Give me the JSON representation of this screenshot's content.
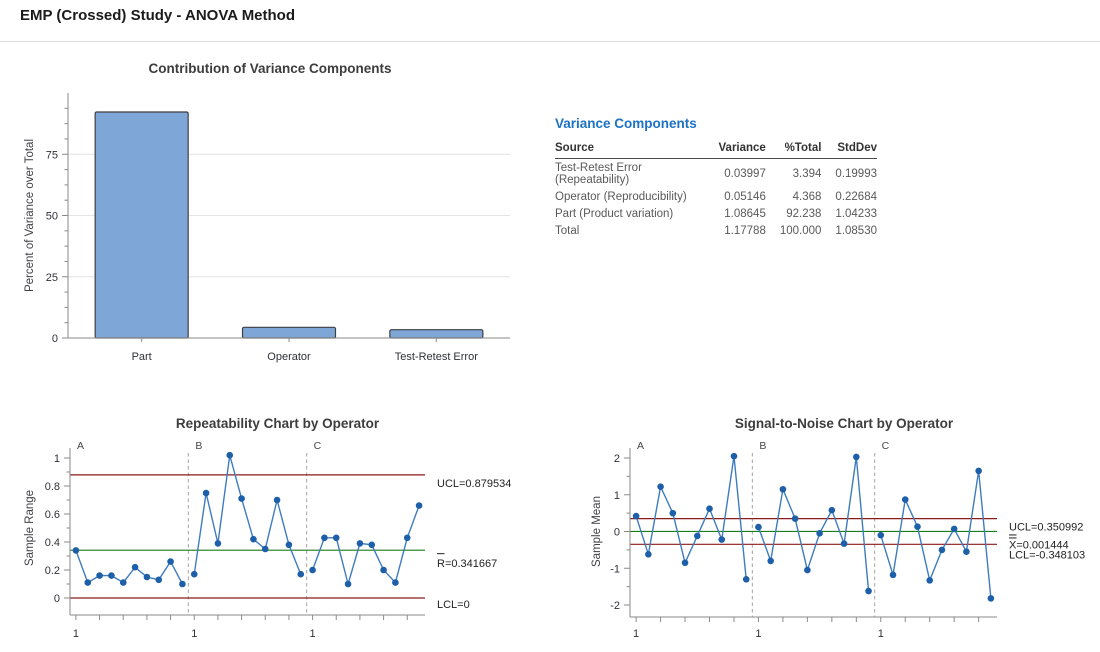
{
  "page": {
    "title": "EMP (Crossed) Study - ANOVA Method"
  },
  "colors": {
    "heading_blue": "#1c72c4",
    "bar_fill": "#7ea7d8",
    "bar_border": "#3f3f3f",
    "limit_red": "#8b1a1a",
    "center_green": "#1a7d1a",
    "marker_blue": "#1d5fa8",
    "line_blue": "#3e7cbe"
  },
  "variance_table": {
    "title": "Variance Components",
    "columns": [
      "Source",
      "Variance",
      "%Total",
      "StdDev"
    ],
    "rows": [
      {
        "source": "Test-Retest Error (Repeatability)",
        "variance": "0.03997",
        "pct_total": "3.394",
        "stddev": "0.19993"
      },
      {
        "source": "Operator (Reproducibility)",
        "variance": "0.05146",
        "pct_total": "4.368",
        "stddev": "0.22684"
      },
      {
        "source": "Part (Product variation)",
        "variance": "1.08645",
        "pct_total": "92.238",
        "stddev": "1.04233"
      },
      {
        "source": "Total",
        "variance": "1.17788",
        "pct_total": "100.000",
        "stddev": "1.08530"
      }
    ]
  },
  "chart_data": [
    {
      "type": "bar",
      "title": "Contribution of Variance Components",
      "xlabel": "",
      "ylabel": "Percent of Variance over Total",
      "categories": [
        "Part",
        "Operator",
        "Test-Retest Error"
      ],
      "values": [
        92.238,
        4.368,
        3.394
      ],
      "ylim": [
        0,
        100
      ],
      "ytick_values": [
        0,
        25,
        50,
        75
      ],
      "ytick_labels": [
        "0",
        "25",
        "50",
        "75"
      ],
      "grid": true
    },
    {
      "type": "line",
      "subtype": "control_chart",
      "title": "Repeatability Chart by Operator",
      "ylabel": "Sample Range",
      "x_group_tick_label": "1",
      "groups": [
        {
          "label": "A",
          "values": [
            0.34,
            0.11,
            0.16,
            0.16,
            0.11,
            0.22,
            0.15,
            0.13,
            0.26,
            0.1
          ]
        },
        {
          "label": "B",
          "values": [
            0.17,
            0.75,
            0.39,
            1.02,
            0.71,
            0.42,
            0.35,
            0.7,
            0.38,
            0.17
          ]
        },
        {
          "label": "C",
          "values": [
            0.2,
            0.43,
            0.43,
            0.1,
            0.39,
            0.38,
            0.2,
            0.11,
            0.43,
            0.66
          ]
        }
      ],
      "limits": {
        "ucl": 0.879534,
        "center": 0.341667,
        "lcl": 0
      },
      "limit_labels": {
        "ucl": "UCL=0.879534",
        "center": "R=0.341667",
        "lcl": "LCL=0"
      },
      "center_decoration": "overline",
      "ylim": [
        0,
        1
      ],
      "ytick_values": [
        0,
        0.2,
        0.4,
        0.6,
        0.8,
        1
      ],
      "ytick_labels": [
        "0",
        "0.2",
        "0.4",
        "0.6",
        "0.8",
        "1"
      ],
      "grid": false
    },
    {
      "type": "line",
      "subtype": "control_chart",
      "title": "Signal-to-Noise Chart by Operator",
      "ylabel": "Sample Mean",
      "x_group_tick_label": "1",
      "groups": [
        {
          "label": "A",
          "values": [
            0.42,
            -0.62,
            1.22,
            0.5,
            -0.85,
            -0.12,
            0.62,
            -0.22,
            2.05,
            -1.3
          ]
        },
        {
          "label": "B",
          "values": [
            0.12,
            -0.8,
            1.15,
            0.35,
            -1.05,
            -0.05,
            0.58,
            -0.33,
            2.03,
            -1.62
          ]
        },
        {
          "label": "C",
          "values": [
            -0.1,
            -1.18,
            0.87,
            0.13,
            -1.33,
            -0.5,
            0.07,
            -0.55,
            1.65,
            -1.82
          ]
        }
      ],
      "limits": {
        "ucl": 0.350992,
        "center": 0.001444,
        "lcl": -0.348103
      },
      "limit_labels": {
        "ucl": "UCL=0.350992",
        "center": "X=0.001444",
        "lcl": "LCL=-0.348103"
      },
      "center_decoration": "double-overline",
      "ylim": [
        -2,
        2
      ],
      "ytick_values": [
        -2,
        -1,
        0,
        1,
        2
      ],
      "ytick_labels": [
        "-2",
        "-1",
        "0",
        "1",
        "2"
      ],
      "grid": false
    }
  ]
}
